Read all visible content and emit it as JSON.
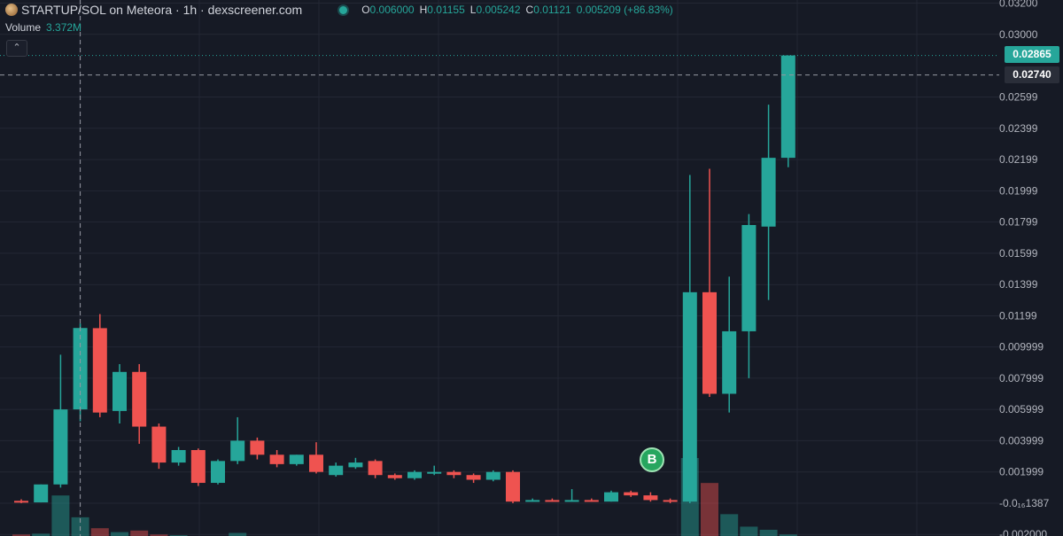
{
  "legend": {
    "title": "STARTUP/SOL on Meteora · 1h · dexscreener.com",
    "open_key": "O",
    "open": "0.006000",
    "high_key": "H",
    "high": "0.01155",
    "low_key": "L",
    "low": "0.005242",
    "close_key": "C",
    "close": "0.01121",
    "change": "0.005209 (+86.83%)"
  },
  "volume": {
    "label": "Volume",
    "value": "3.372M"
  },
  "collapse_icon": "chevron-up-icon",
  "price_tags": {
    "last": "0.02865",
    "crosshair": "0.02740"
  },
  "marker": {
    "label": "B",
    "color": "#26a65f"
  },
  "colors": {
    "up": "#26a69a",
    "down": "#ef5350",
    "background": "#161a25",
    "grid": "#232734",
    "axis_text": "#b2b5be"
  },
  "chart_data": {
    "type": "candlestick",
    "y_axis_ticks": [
      "0.03200",
      "0.03000",
      "0.02599",
      "0.02399",
      "0.02199",
      "0.01999",
      "0.01799",
      "0.01599",
      "0.01399",
      "0.01199",
      "0.009999",
      "0.007999",
      "0.005999",
      "0.003999",
      "0.001999",
      "-0.0₁₆1387",
      "-0.002000"
    ],
    "ylim": [
      -0.0021,
      0.0322
    ],
    "candles": [
      {
        "o": 0.00015,
        "h": 0.00025,
        "l": 0.0,
        "c": 5e-05
      },
      {
        "o": 5e-05,
        "h": 0.0012,
        "l": 5e-05,
        "c": 0.0012
      },
      {
        "o": 0.0012,
        "h": 0.0095,
        "l": 0.001,
        "c": 0.006
      },
      {
        "o": 0.006,
        "h": 0.0115,
        "l": 0.005242,
        "c": 0.01121
      },
      {
        "o": 0.0112,
        "h": 0.0121,
        "l": 0.0055,
        "c": 0.0058
      },
      {
        "o": 0.0059,
        "h": 0.0089,
        "l": 0.0051,
        "c": 0.0084
      },
      {
        "o": 0.0084,
        "h": 0.0089,
        "l": 0.0038,
        "c": 0.0049
      },
      {
        "o": 0.0049,
        "h": 0.0051,
        "l": 0.0022,
        "c": 0.0026
      },
      {
        "o": 0.0026,
        "h": 0.0036,
        "l": 0.0024,
        "c": 0.0034
      },
      {
        "o": 0.0034,
        "h": 0.0035,
        "l": 0.0011,
        "c": 0.0013
      },
      {
        "o": 0.0013,
        "h": 0.0028,
        "l": 0.0012,
        "c": 0.0027
      },
      {
        "o": 0.0027,
        "h": 0.0055,
        "l": 0.0025,
        "c": 0.004
      },
      {
        "o": 0.004,
        "h": 0.0042,
        "l": 0.0028,
        "c": 0.0031
      },
      {
        "o": 0.0031,
        "h": 0.0034,
        "l": 0.0023,
        "c": 0.0025
      },
      {
        "o": 0.0025,
        "h": 0.0031,
        "l": 0.0024,
        "c": 0.0031
      },
      {
        "o": 0.0031,
        "h": 0.0039,
        "l": 0.0019,
        "c": 0.002
      },
      {
        "o": 0.0018,
        "h": 0.0026,
        "l": 0.0017,
        "c": 0.0024
      },
      {
        "o": 0.0023,
        "h": 0.0029,
        "l": 0.0022,
        "c": 0.0026
      },
      {
        "o": 0.0027,
        "h": 0.0028,
        "l": 0.0016,
        "c": 0.0018
      },
      {
        "o": 0.0018,
        "h": 0.0019,
        "l": 0.0015,
        "c": 0.0016
      },
      {
        "o": 0.0016,
        "h": 0.0021,
        "l": 0.0015,
        "c": 0.002
      },
      {
        "o": 0.002,
        "h": 0.0024,
        "l": 0.0018,
        "c": 0.002
      },
      {
        "o": 0.002,
        "h": 0.0021,
        "l": 0.0016,
        "c": 0.0018
      },
      {
        "o": 0.0018,
        "h": 0.0019,
        "l": 0.0013,
        "c": 0.0015
      },
      {
        "o": 0.0015,
        "h": 0.0021,
        "l": 0.0014,
        "c": 0.002
      },
      {
        "o": 0.002,
        "h": 0.0021,
        "l": 0.0,
        "c": 0.0001
      },
      {
        "o": 0.0001,
        "h": 0.0003,
        "l": 0.0001,
        "c": 0.0002
      },
      {
        "o": 0.0002,
        "h": 0.0003,
        "l": 0.0001,
        "c": 0.0001
      },
      {
        "o": 0.0001,
        "h": 0.0009,
        "l": 0.0001,
        "c": 0.0002
      },
      {
        "o": 0.0002,
        "h": 0.0003,
        "l": 0.0001,
        "c": 0.0001
      },
      {
        "o": 0.0001,
        "h": 0.0008,
        "l": 0.0001,
        "c": 0.0007
      },
      {
        "o": 0.0007,
        "h": 0.0008,
        "l": 0.0004,
        "c": 0.0005
      },
      {
        "o": 0.0005,
        "h": 0.0007,
        "l": 0.0001,
        "c": 0.0002
      },
      {
        "o": 0.0002,
        "h": 0.0003,
        "l": 0.0,
        "c": 0.0001
      },
      {
        "o": 0.0001,
        "h": 0.021,
        "l": 0.0,
        "c": 0.0135
      },
      {
        "o": 0.0135,
        "h": 0.0214,
        "l": 0.0068,
        "c": 0.007
      },
      {
        "o": 0.007,
        "h": 0.0145,
        "l": 0.0058,
        "c": 0.011
      },
      {
        "o": 0.011,
        "h": 0.0185,
        "l": 0.008,
        "c": 0.0178
      },
      {
        "o": 0.0177,
        "h": 0.0255,
        "l": 0.013,
        "c": 0.0221
      },
      {
        "o": 0.0221,
        "h": 0.02865,
        "l": 0.0215,
        "c": 0.02865
      }
    ],
    "volumes": [
      0.02,
      0.03,
      0.52,
      0.24,
      0.1,
      0.05,
      0.07,
      0.02,
      0.01,
      0.0,
      0.0,
      0.04,
      0.0,
      0.0,
      0.0,
      0.0,
      0.0,
      0.0,
      0.0,
      0.0,
      0.0,
      0.0,
      0.0,
      0.0,
      0.0,
      0.0,
      0.0,
      0.0,
      0.0,
      0.0,
      0.0,
      0.0,
      0.0,
      0.0,
      1.0,
      0.68,
      0.28,
      0.12,
      0.08,
      0.02
    ]
  }
}
